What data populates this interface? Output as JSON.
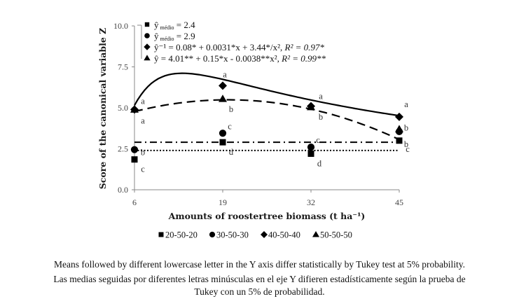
{
  "chart_data": {
    "type": "line",
    "title": "",
    "xlabel": "Amounts of roostertree biomass (t ha⁻¹)",
    "ylabel": "Score of the canonical variable Z",
    "x": [
      6,
      19,
      32,
      45
    ],
    "x_tick_labels": [
      "6",
      "19",
      "32",
      "45"
    ],
    "y_tick_labels": [
      "0.0",
      "2.5",
      "5.0",
      "7.5",
      "10.0"
    ],
    "y_ticks": [
      0,
      2.5,
      5.0,
      7.5,
      10.0
    ],
    "ylim": [
      0,
      10
    ],
    "grid": false,
    "legend_position": "bottom",
    "series": [
      {
        "name": "20-50-20",
        "marker": "square",
        "values": [
          1.85,
          2.9,
          2.2,
          3.0
        ],
        "letters": [
          "c",
          "d",
          "d",
          "c"
        ],
        "fit": {
          "kind": "mean",
          "value": 2.4,
          "line_style": "dotted",
          "equation": "ŷ médio = 2.4"
        }
      },
      {
        "name": "30-50-30",
        "marker": "circle",
        "values": [
          2.45,
          3.45,
          2.6,
          3.55
        ],
        "letters": [
          "b",
          "c",
          "c",
          "b"
        ],
        "fit": {
          "kind": "mean",
          "value": 2.9,
          "line_style": "dash-dot",
          "equation": "ŷ médio = 2.9"
        }
      },
      {
        "name": "40-50-40",
        "marker": "diamond",
        "values": [
          4.9,
          6.35,
          5.1,
          4.45
        ],
        "letters": [
          "a",
          "a",
          "a",
          "a"
        ],
        "fit": {
          "kind": "inverse-quadratic",
          "coefficients": {
            "a": 0.08,
            "b": 0.0031,
            "c": 3.44
          },
          "line_style": "solid",
          "equation": "ŷ⁻¹ = 0.08* + 0.0031*x + 3.44*/x², R² = 0.97*"
        }
      },
      {
        "name": "50-50-50",
        "marker": "triangle",
        "values": [
          4.9,
          5.55,
          5.05,
          3.7
        ],
        "letters": [
          "a",
          "b",
          "b",
          "b"
        ],
        "fit": {
          "kind": "quadratic",
          "coefficients": {
            "a": 4.01,
            "b": 0.15,
            "c": -0.0038
          },
          "line_style": "dashed",
          "equation": "ŷ = 4.01** + 0.15*x - 0.0038**x², R² = 0.99**"
        }
      }
    ],
    "equation_legend": [
      {
        "marker": "square",
        "parts": {
          "lhs": "ŷ",
          "sub": "médio",
          "rhs": " = 2.4",
          "r2": ""
        }
      },
      {
        "marker": "circle",
        "parts": {
          "lhs": "ŷ",
          "sub": "médio",
          "rhs": " = 2.9",
          "r2": ""
        }
      },
      {
        "marker": "diamond",
        "parts": {
          "lhs": "ŷ⁻¹",
          "sub": "",
          "rhs": " = 0.08* + 0.0031*x + 3.44*/x²,  ",
          "r2": "R² = 0.97*"
        }
      },
      {
        "marker": "triangle",
        "parts": {
          "lhs": "ŷ",
          "sub": "",
          "rhs": " = 4.01** + 0.15*x - 0.0038**x²,  ",
          "r2": "R² = 0.99**"
        }
      }
    ]
  },
  "caption": {
    "english": "Means followed by different lowercase letter in the Y axis differ statistically by Tukey test at 5% probability.",
    "spanish_line1": "Las medias seguidas por diferentes letras minúsculas en el eje Y difieren estadísticamente según la prueba de",
    "spanish_line2": "Tukey con un 5% de probabilidad."
  }
}
